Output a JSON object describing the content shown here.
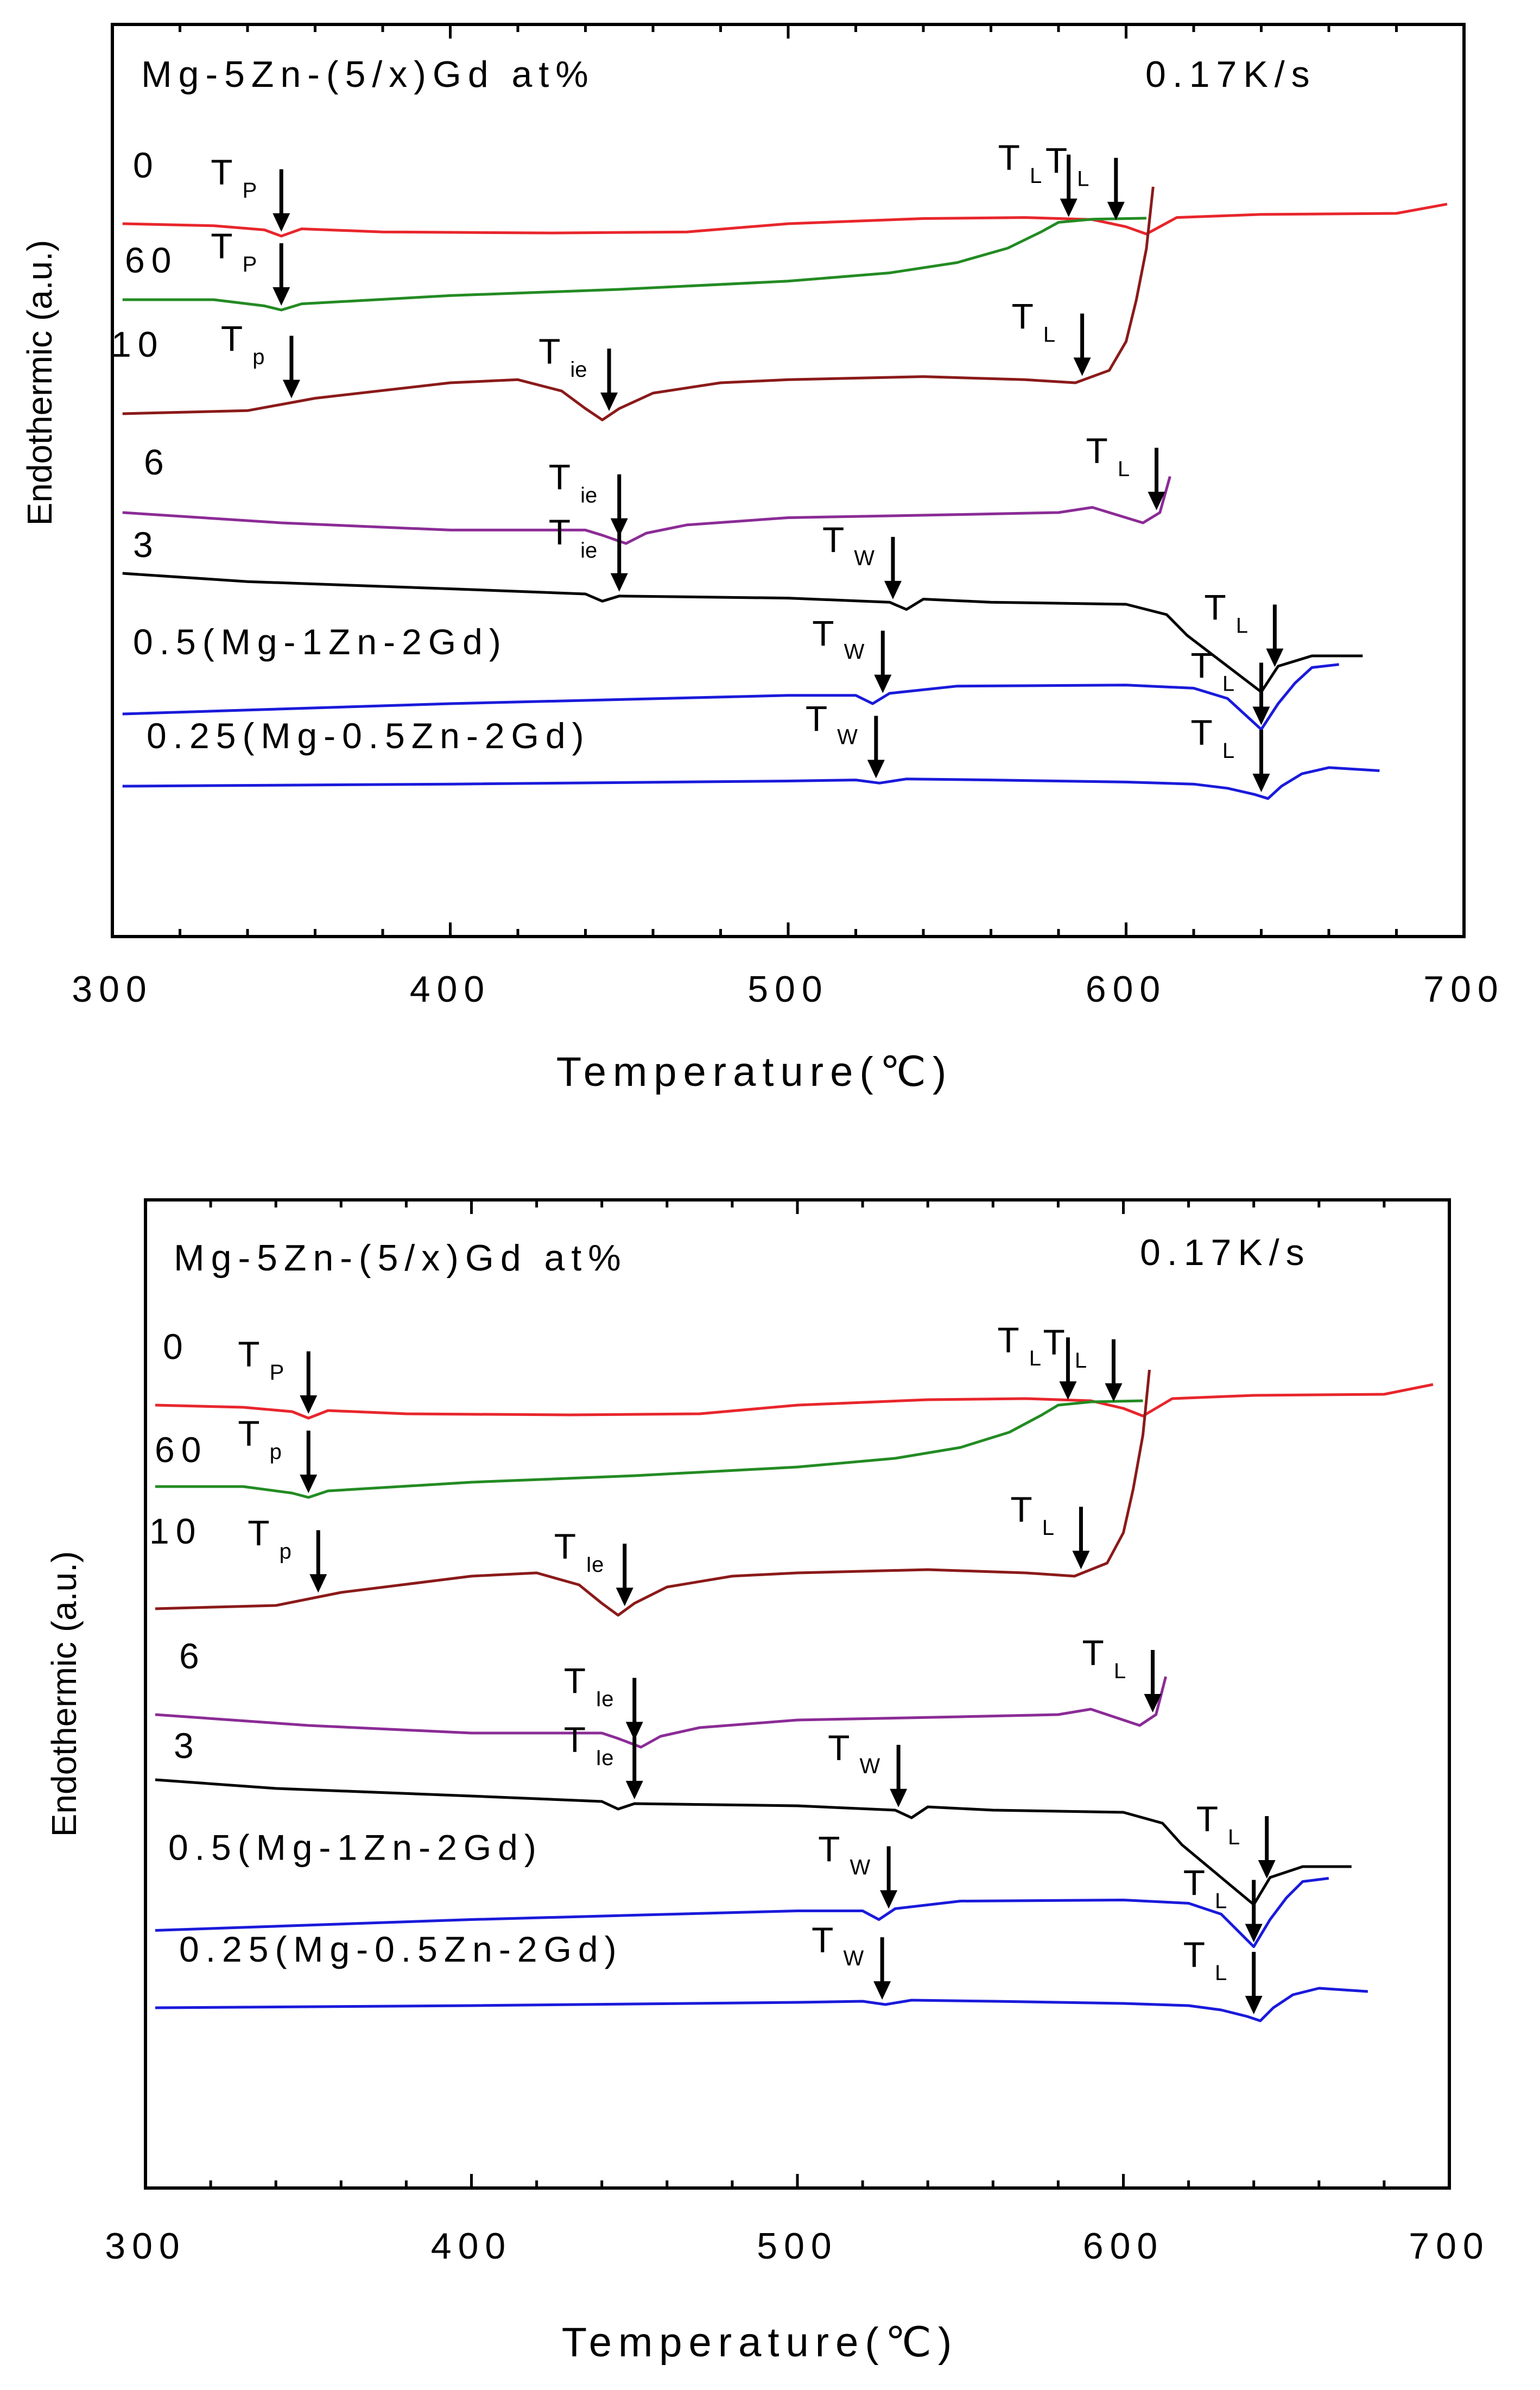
{
  "chart_data": [
    {
      "type": "line",
      "title": "Mg-5Zn-(5/x)Gd at%",
      "rate_label": "0.17K/s",
      "xlabel": "Temperature(℃)",
      "ylabel": "Endothermic (a.u.)",
      "xlim": [
        300,
        700
      ],
      "xticks": [
        "300",
        "400",
        "500",
        "600",
        "700"
      ],
      "series": [
        {
          "name": "0",
          "color": "#e8262c",
          "offset": 0.0,
          "x": [
            303,
            330,
            345,
            350,
            356,
            380,
            430,
            470,
            500,
            540,
            570,
            590,
            600,
            606,
            615,
            640,
            680,
            695
          ],
          "y": [
            0.0,
            -0.02,
            -0.06,
            -0.12,
            -0.05,
            -0.08,
            -0.09,
            -0.08,
            0.0,
            0.05,
            0.06,
            0.04,
            -0.03,
            -0.1,
            0.06,
            0.09,
            0.1,
            0.19
          ],
          "markers": [
            {
              "label": "T",
              "sub": "P",
              "x": 350
            },
            {
              "label": "T",
              "sub": "L",
              "x": 597
            }
          ]
        },
        {
          "name": "60",
          "color": "#238b23",
          "offset": 1.0,
          "x": [
            303,
            330,
            345,
            350,
            356,
            400,
            450,
            500,
            530,
            550,
            565,
            575,
            580,
            590,
            606
          ],
          "y": [
            0.0,
            0.0,
            -0.06,
            -0.1,
            -0.04,
            0.04,
            0.1,
            0.18,
            0.26,
            0.36,
            0.5,
            0.66,
            0.75,
            0.78,
            0.79
          ],
          "markers": [
            {
              "label": "T",
              "sub": "P",
              "x": 350
            },
            {
              "label": "T",
              "sub": "L",
              "x": 583
            }
          ]
        },
        {
          "name": "10",
          "color": "#8b1a1a",
          "offset": 2.5,
          "x": [
            303,
            340,
            360,
            400,
            420,
            433,
            440,
            445,
            450,
            460,
            480,
            500,
            540,
            570,
            585,
            595,
            600,
            603,
            606,
            608
          ],
          "y": [
            0.0,
            0.03,
            0.15,
            0.3,
            0.33,
            0.22,
            0.05,
            -0.06,
            0.05,
            0.2,
            0.3,
            0.33,
            0.36,
            0.33,
            0.3,
            0.42,
            0.7,
            1.1,
            1.6,
            2.2
          ],
          "markers": [
            {
              "label": "T",
              "sub": "p",
              "x": 353
            },
            {
              "label": "T",
              "sub": "ie",
              "x": 447
            },
            {
              "label": "T",
              "sub": "L",
              "x": 587
            }
          ]
        },
        {
          "name": "6",
          "color": "#8b2c96",
          "offset": 3.8,
          "x": [
            303,
            350,
            400,
            440,
            445,
            452,
            458,
            470,
            500,
            550,
            580,
            590,
            595,
            600,
            605,
            610,
            613
          ],
          "y": [
            0.0,
            -0.1,
            -0.17,
            -0.17,
            -0.22,
            -0.3,
            -0.2,
            -0.12,
            -0.05,
            -0.02,
            0.0,
            0.05,
            0.0,
            -0.05,
            -0.1,
            0.0,
            0.35
          ],
          "markers": [
            {
              "label": "T",
              "sub": "ie",
              "x": 450
            },
            {
              "label": "T",
              "sub": "L",
              "x": 609
            }
          ]
        },
        {
          "name": "3",
          "color": "#000000",
          "offset": 4.6,
          "x": [
            303,
            340,
            400,
            440,
            445,
            450,
            500,
            530,
            535,
            540,
            560,
            600,
            612,
            618,
            630,
            640,
            645,
            655,
            670
          ],
          "y": [
            0.0,
            -0.08,
            -0.15,
            -0.2,
            -0.27,
            -0.22,
            -0.24,
            -0.28,
            -0.35,
            -0.25,
            -0.28,
            -0.3,
            -0.4,
            -0.6,
            -0.9,
            -1.15,
            -0.9,
            -0.8,
            -0.8
          ],
          "markers": [
            {
              "label": "T",
              "sub": "ie",
              "x": 450
            },
            {
              "label": "T",
              "sub": "W",
              "x": 531
            },
            {
              "label": "T",
              "sub": "L",
              "x": 644
            }
          ]
        },
        {
          "name": "0.5(Mg-1Zn-2Gd)",
          "color": "#1a1adb",
          "offset": 6.45,
          "x": [
            303,
            400,
            500,
            520,
            525,
            530,
            550,
            600,
            620,
            630,
            635,
            640,
            645,
            650,
            655,
            663
          ],
          "y": [
            0.0,
            0.1,
            0.18,
            0.18,
            0.1,
            0.2,
            0.27,
            0.28,
            0.25,
            0.15,
            0.0,
            -0.15,
            0.1,
            0.3,
            0.45,
            0.48
          ],
          "markers": [
            {
              "label": "T",
              "sub": "W",
              "x": 528
            },
            {
              "label": "T",
              "sub": "L",
              "x": 640
            }
          ]
        },
        {
          "name": "0.25(Mg-0.5Zn-2Gd)",
          "color": "#1a1adb",
          "offset": 7.4,
          "x": [
            303,
            400,
            500,
            520,
            527,
            535,
            560,
            600,
            620,
            630,
            638,
            642,
            646,
            652,
            660,
            675
          ],
          "y": [
            0.0,
            0.02,
            0.05,
            0.06,
            0.03,
            0.07,
            0.06,
            0.04,
            0.02,
            -0.02,
            -0.08,
            -0.12,
            0.0,
            0.12,
            0.18,
            0.15
          ],
          "markers": [
            {
              "label": "T",
              "sub": "W",
              "x": 526
            },
            {
              "label": "T",
              "sub": "L",
              "x": 640
            }
          ]
        }
      ]
    },
    {
      "type": "line",
      "title": "Mg-5Zn-(5/x)Gd at%",
      "rate_label": "0.17K/s",
      "xlabel": "Temperature(℃)",
      "ylabel": "Endothermic (a.u.)",
      "xlim": [
        300,
        700
      ],
      "xticks": [
        "300",
        "400",
        "500",
        "600",
        "700"
      ],
      "series": [
        {
          "name": "0",
          "color": "#e8262c",
          "offset": 0.0,
          "x": [
            303,
            330,
            345,
            350,
            356,
            380,
            430,
            470,
            500,
            540,
            570,
            590,
            600,
            606,
            615,
            640,
            680,
            695
          ],
          "y": [
            0.0,
            -0.02,
            -0.06,
            -0.12,
            -0.05,
            -0.08,
            -0.09,
            -0.08,
            0.0,
            0.05,
            0.06,
            0.04,
            -0.03,
            -0.1,
            0.06,
            0.09,
            0.1,
            0.19
          ],
          "markers": [
            {
              "label": "T",
              "sub": "P",
              "x": 350
            },
            {
              "label": "T",
              "sub": "L",
              "x": 597
            }
          ]
        },
        {
          "name": "60",
          "color": "#238b23",
          "offset": 1.0,
          "x": [
            303,
            330,
            345,
            350,
            356,
            400,
            450,
            500,
            530,
            550,
            565,
            575,
            580,
            590,
            606
          ],
          "y": [
            0.0,
            0.0,
            -0.06,
            -0.1,
            -0.04,
            0.04,
            0.1,
            0.18,
            0.26,
            0.36,
            0.5,
            0.66,
            0.75,
            0.78,
            0.79
          ],
          "markers": [
            {
              "label": "T",
              "sub": "p",
              "x": 350
            },
            {
              "label": "T",
              "sub": "L",
              "x": 583
            }
          ]
        },
        {
          "name": "10",
          "color": "#8b1a1a",
          "offset": 2.5,
          "x": [
            303,
            340,
            360,
            400,
            420,
            433,
            440,
            445,
            450,
            460,
            480,
            500,
            540,
            570,
            585,
            595,
            600,
            603,
            606,
            608
          ],
          "y": [
            0.0,
            0.03,
            0.15,
            0.3,
            0.33,
            0.22,
            0.05,
            -0.06,
            0.05,
            0.2,
            0.3,
            0.33,
            0.36,
            0.33,
            0.3,
            0.42,
            0.7,
            1.1,
            1.6,
            2.2
          ],
          "markers": [
            {
              "label": "T",
              "sub": "p",
              "x": 353
            },
            {
              "label": "T",
              "sub": "Ie",
              "x": 447
            },
            {
              "label": "T",
              "sub": "L",
              "x": 587
            }
          ]
        },
        {
          "name": "6",
          "color": "#8b2c96",
          "offset": 3.8,
          "x": [
            303,
            350,
            400,
            440,
            445,
            452,
            458,
            470,
            500,
            550,
            580,
            590,
            595,
            600,
            605,
            610,
            613
          ],
          "y": [
            0.0,
            -0.1,
            -0.17,
            -0.17,
            -0.22,
            -0.3,
            -0.2,
            -0.12,
            -0.05,
            -0.02,
            0.0,
            0.05,
            0.0,
            -0.05,
            -0.1,
            0.0,
            0.35
          ],
          "markers": [
            {
              "label": "T",
              "sub": "Ie",
              "x": 450
            },
            {
              "label": "T",
              "sub": "L",
              "x": 609
            }
          ]
        },
        {
          "name": "3",
          "color": "#000000",
          "offset": 4.6,
          "x": [
            303,
            340,
            400,
            440,
            445,
            450,
            500,
            530,
            535,
            540,
            560,
            600,
            612,
            618,
            630,
            640,
            645,
            655,
            670
          ],
          "y": [
            0.0,
            -0.08,
            -0.15,
            -0.2,
            -0.27,
            -0.22,
            -0.24,
            -0.28,
            -0.35,
            -0.25,
            -0.28,
            -0.3,
            -0.4,
            -0.6,
            -0.9,
            -1.15,
            -0.9,
            -0.8,
            -0.8
          ],
          "markers": [
            {
              "label": "T",
              "sub": "Ie",
              "x": 450
            },
            {
              "label": "T",
              "sub": "W",
              "x": 531
            },
            {
              "label": "T",
              "sub": "L",
              "x": 644
            }
          ]
        },
        {
          "name": "0.5(Mg-1Zn-2Gd)",
          "color": "#1a1adb",
          "offset": 6.45,
          "x": [
            303,
            400,
            500,
            520,
            525,
            530,
            550,
            600,
            620,
            630,
            635,
            640,
            645,
            650,
            655,
            663
          ],
          "y": [
            0.0,
            0.1,
            0.18,
            0.18,
            0.1,
            0.2,
            0.27,
            0.28,
            0.25,
            0.15,
            0.0,
            -0.15,
            0.1,
            0.3,
            0.45,
            0.48
          ],
          "markers": [
            {
              "label": "T",
              "sub": "W",
              "x": 528
            },
            {
              "label": "T",
              "sub": "L",
              "x": 640
            }
          ]
        },
        {
          "name": "0.25(Mg-0.5Zn-2Gd)",
          "color": "#1a1adb",
          "offset": 7.4,
          "x": [
            303,
            400,
            500,
            520,
            527,
            535,
            560,
            600,
            620,
            630,
            638,
            642,
            646,
            652,
            660,
            675
          ],
          "y": [
            0.0,
            0.02,
            0.05,
            0.06,
            0.03,
            0.07,
            0.06,
            0.04,
            0.02,
            -0.02,
            -0.08,
            -0.12,
            0.0,
            0.12,
            0.18,
            0.15
          ],
          "markers": [
            {
              "label": "T",
              "sub": "W",
              "x": 526
            },
            {
              "label": "T",
              "sub": "L",
              "x": 640
            }
          ]
        }
      ]
    }
  ]
}
